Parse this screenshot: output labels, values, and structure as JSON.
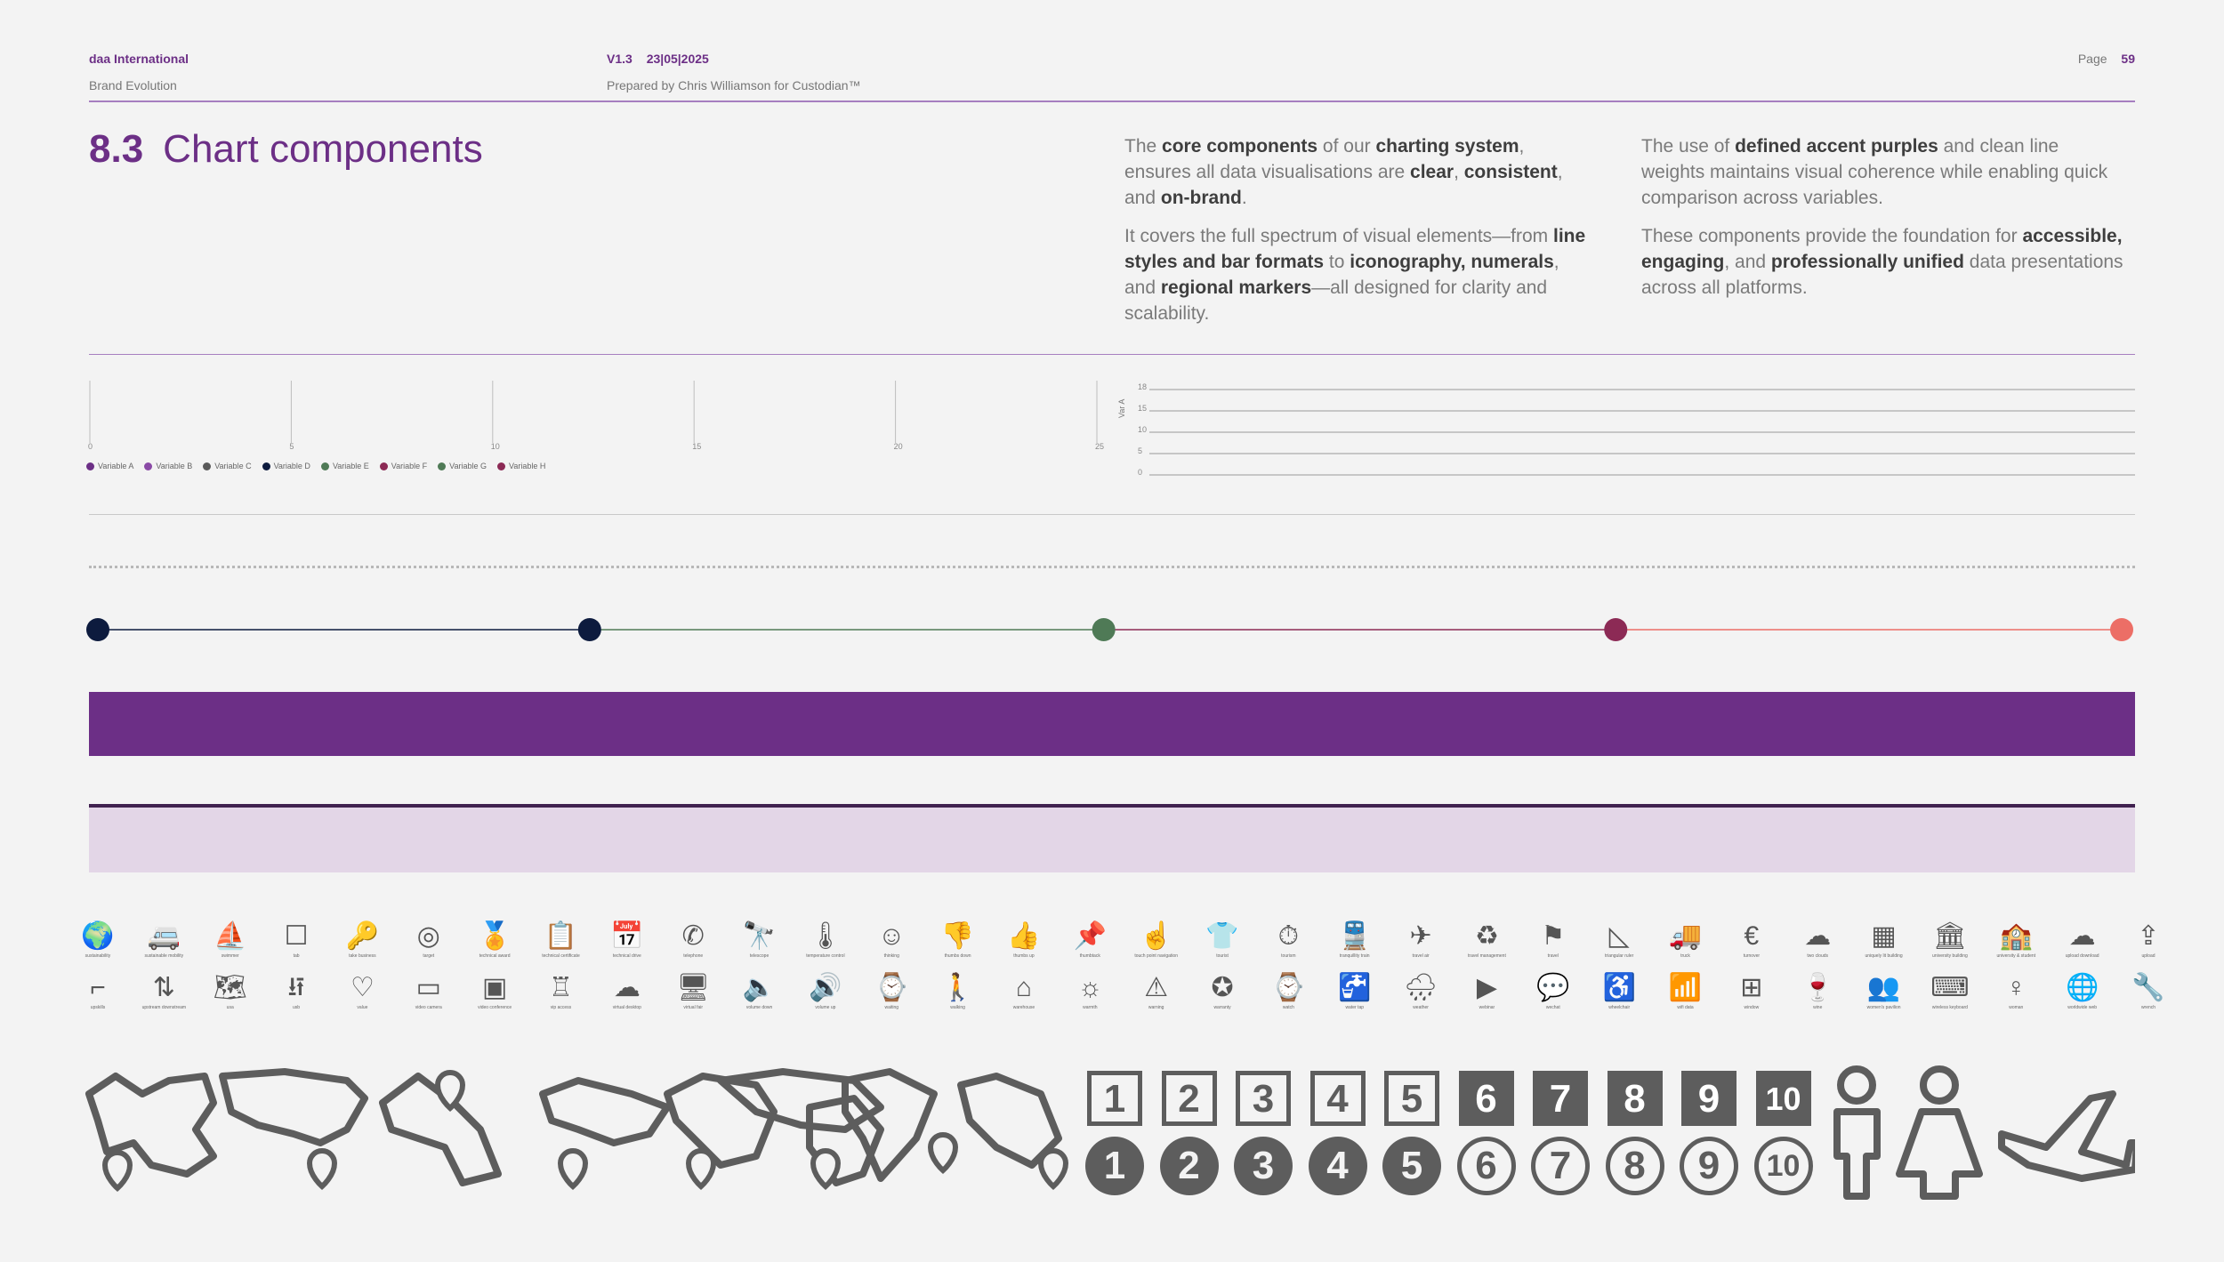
{
  "header": {
    "company": "daa International",
    "subtitle": "Brand Evolution",
    "version": "V1.3",
    "date": "23|05|2025",
    "prepared": "Prepared by Chris Williamson for Custodian™",
    "page_label": "Page",
    "page_number": "59"
  },
  "section": {
    "number": "8.3",
    "title": "Chart components"
  },
  "intro": {
    "col1_p1": [
      "The ",
      "core components",
      " of our ",
      "charting system",
      ", ensures all data visualisations are ",
      "clear",
      ", ",
      "consistent",
      ", and ",
      "on-brand",
      "."
    ],
    "col1_p2": [
      "It covers the full spectrum of visual elements—from ",
      "line styles and bar formats",
      " to ",
      "iconography, numerals",
      ", and ",
      "regional markers",
      "—all designed for clarity and scalability."
    ],
    "col2_p1": [
      "The use of ",
      "defined accent purples",
      " and clean line weights maintains visual coherence while enabling quick comparison across variables."
    ],
    "col2_p2": [
      "These components provide the foundation for ",
      "accessible, engaging",
      ", and ",
      "professionally unified",
      " data presentations across all platforms."
    ]
  },
  "colors": {
    "purple": "#6c2f86",
    "lavender": "#e3d6e7",
    "navy": "#0d1b3e",
    "green": "#4f7a56",
    "berry": "#8c2a55",
    "coral": "#ec6e66"
  },
  "chart_data": [
    {
      "type": "bar",
      "x_ticks": [
        "0",
        "5",
        "10",
        "15",
        "20",
        "25"
      ],
      "xlim": [
        0,
        25
      ],
      "legend_position": "bottom-left",
      "series": [
        {
          "name": "Variable A",
          "color": "#6c2f86",
          "values": []
        },
        {
          "name": "Variable B",
          "color": "#8a4aa6",
          "values": []
        },
        {
          "name": "Variable C",
          "color": "#5a5a5a",
          "values": []
        },
        {
          "name": "Variable D",
          "color": "#0d1b3e",
          "values": []
        },
        {
          "name": "Variable E",
          "color": "#4f7a56",
          "values": []
        },
        {
          "name": "Variable F",
          "color": "#8c2a55",
          "values": []
        },
        {
          "name": "Variable G",
          "color": "#4f7a56",
          "values": []
        },
        {
          "name": "Variable H",
          "color": "#8c2a55",
          "values": []
        }
      ]
    },
    {
      "type": "line",
      "ylabel": "Var A",
      "y_ticks": [
        "0",
        "5",
        "10",
        "15",
        "18"
      ],
      "ylim": [
        0,
        18
      ],
      "grid": true,
      "series": []
    }
  ],
  "timeline": {
    "markers": [
      {
        "pos": 0.0,
        "color": "#0d1b3e"
      },
      {
        "pos": 0.243,
        "color": "#0d1b3e"
      },
      {
        "pos": 0.497,
        "color": "#4f7a56"
      },
      {
        "pos": 0.75,
        "color": "#8c2a55"
      },
      {
        "pos": 1.0,
        "color": "#ec6e66"
      }
    ]
  },
  "icons_row1": [
    {
      "icon": "🌍",
      "label": "sustainability"
    },
    {
      "icon": "🚐",
      "label": "sustainable mobility"
    },
    {
      "icon": "⛵",
      "label": "swimmer"
    },
    {
      "icon": "☐",
      "label": "tab"
    },
    {
      "icon": "🔑",
      "label": "take business"
    },
    {
      "icon": "◎",
      "label": "target"
    },
    {
      "icon": "🏅",
      "label": "technical award"
    },
    {
      "icon": "📋",
      "label": "technical certificate"
    },
    {
      "icon": "📅",
      "label": "technical drive"
    },
    {
      "icon": "✆",
      "label": "telephone"
    },
    {
      "icon": "🔭",
      "label": "telescope"
    },
    {
      "icon": "🌡",
      "label": "temperature control"
    },
    {
      "icon": "☺",
      "label": "thinking"
    },
    {
      "icon": "👎",
      "label": "thumbs down"
    },
    {
      "icon": "👍",
      "label": "thumbs up"
    },
    {
      "icon": "📌",
      "label": "thumbtack"
    },
    {
      "icon": "☝",
      "label": "touch point navigation"
    },
    {
      "icon": "👕",
      "label": "tourist"
    },
    {
      "icon": "⏱",
      "label": "tourism"
    },
    {
      "icon": "🚆",
      "label": "tranquillity train"
    },
    {
      "icon": "✈",
      "label": "travel air"
    },
    {
      "icon": "♻",
      "label": "travel management"
    },
    {
      "icon": "⚑",
      "label": "travel"
    },
    {
      "icon": "◺",
      "label": "triangular ruler"
    },
    {
      "icon": "🚚",
      "label": "truck"
    },
    {
      "icon": "€",
      "label": "turnover"
    },
    {
      "icon": "☁",
      "label": "two clouds"
    },
    {
      "icon": "▦",
      "label": "uniquely lit building"
    },
    {
      "icon": "🏛",
      "label": "university building"
    },
    {
      "icon": "🏫",
      "label": "university & student"
    },
    {
      "icon": "☁",
      "label": "upload download"
    },
    {
      "icon": "⇪",
      "label": "upload"
    }
  ],
  "icons_row2": [
    {
      "icon": "⌐",
      "label": "upskills"
    },
    {
      "icon": "⇅",
      "label": "upstream downstream"
    },
    {
      "icon": "🗺",
      "label": "usa"
    },
    {
      "icon": "⭿",
      "label": "usb"
    },
    {
      "icon": "♡",
      "label": "value"
    },
    {
      "icon": "▭",
      "label": "video camera"
    },
    {
      "icon": "▣",
      "label": "video conference"
    },
    {
      "icon": "♖",
      "label": "vip access"
    },
    {
      "icon": "☁",
      "label": "virtual desktop"
    },
    {
      "icon": "🖥",
      "label": "virtual fair"
    },
    {
      "icon": "🔈",
      "label": "volume down"
    },
    {
      "icon": "🔊",
      "label": "volume up"
    },
    {
      "icon": "⌚",
      "label": "waiting"
    },
    {
      "icon": "🚶",
      "label": "walking"
    },
    {
      "icon": "⌂",
      "label": "warehouse"
    },
    {
      "icon": "☼",
      "label": "warmth"
    },
    {
      "icon": "⚠",
      "label": "warning"
    },
    {
      "icon": "✪",
      "label": "warranty"
    },
    {
      "icon": "⌚",
      "label": "watch"
    },
    {
      "icon": "🚰",
      "label": "water tap"
    },
    {
      "icon": "🌧",
      "label": "weather"
    },
    {
      "icon": "▶",
      "label": "webinar"
    },
    {
      "icon": "💬",
      "label": "wechat"
    },
    {
      "icon": "♿",
      "label": "wheelchair"
    },
    {
      "icon": "📶",
      "label": "wifi data"
    },
    {
      "icon": "⊞",
      "label": "window"
    },
    {
      "icon": "🍷",
      "label": "wine"
    },
    {
      "icon": "👥",
      "label": "women's pavilion"
    },
    {
      "icon": "⌨",
      "label": "wireless keyboard"
    },
    {
      "icon": "♀",
      "label": "woman"
    },
    {
      "icon": "🌐",
      "label": "worldwide web"
    },
    {
      "icon": "🔧",
      "label": "wrench"
    }
  ],
  "numerals": [
    "1",
    "2",
    "3",
    "4",
    "5",
    "6",
    "7",
    "8",
    "9",
    "10"
  ]
}
